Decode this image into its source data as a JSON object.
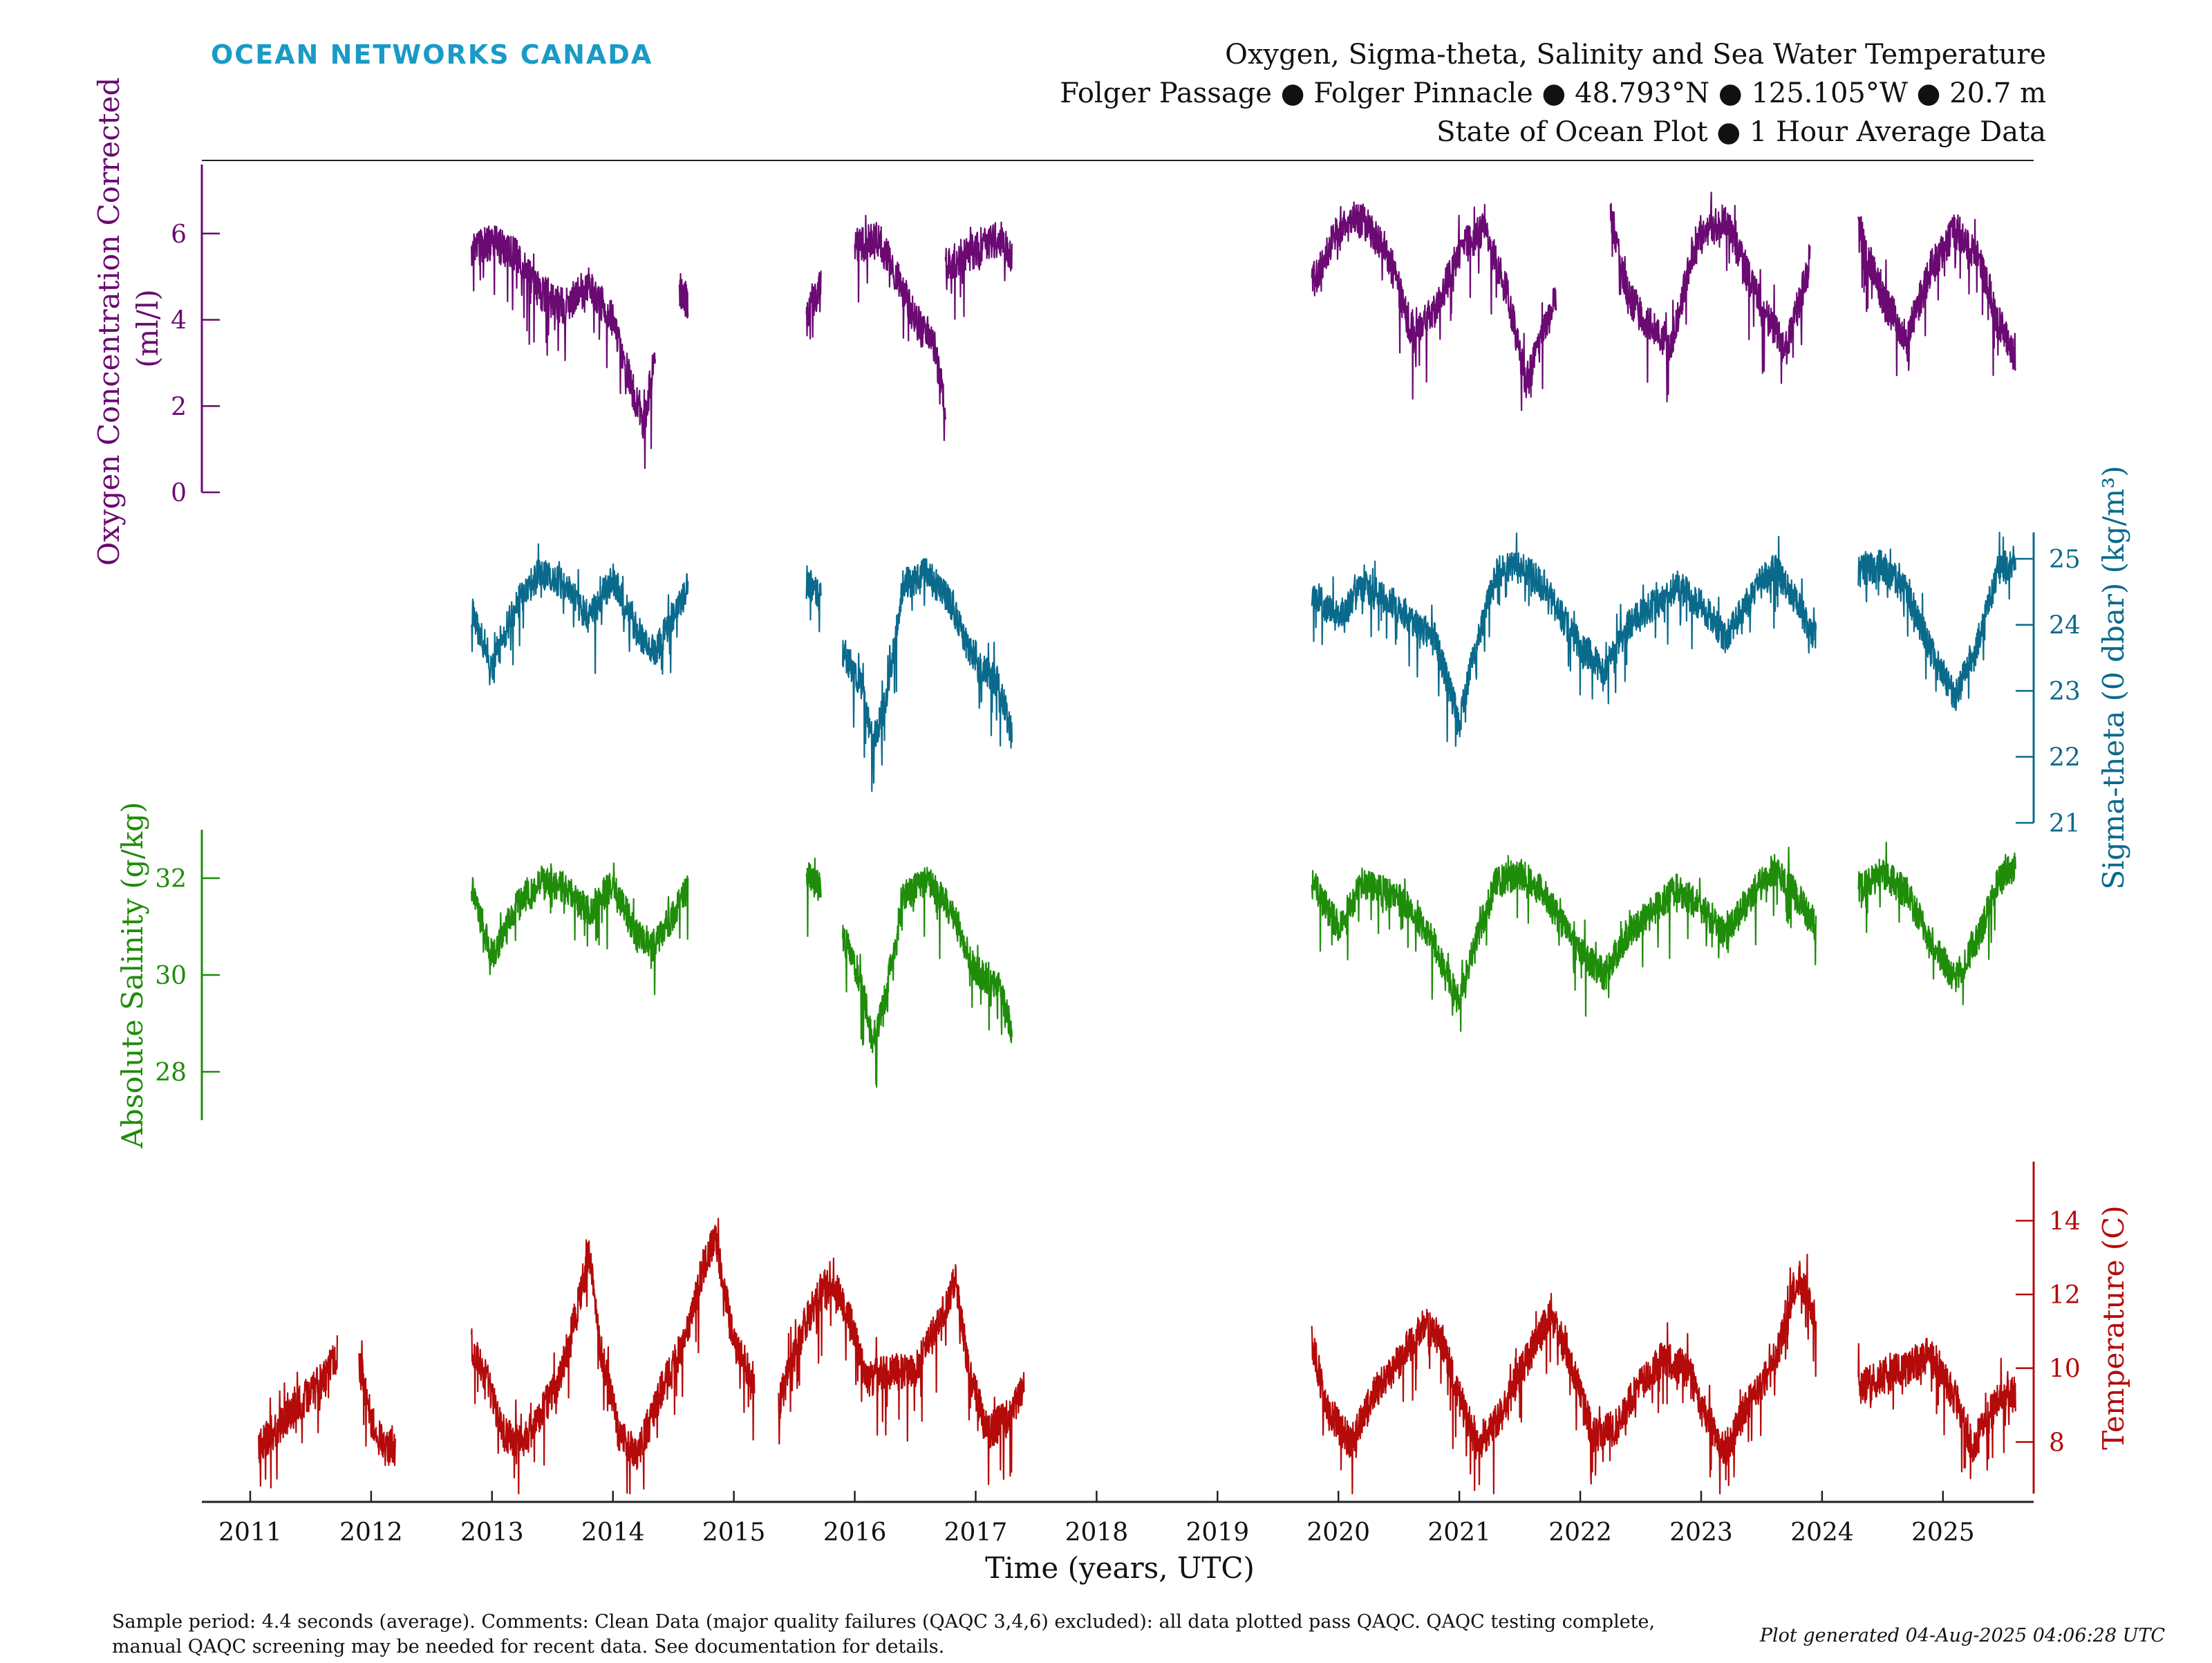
{
  "brand": {
    "name": "OCEAN NETWORKS CANADA",
    "color": "#1a9ac6"
  },
  "header": {
    "line1": "Oxygen, Sigma-theta, Salinity and Sea Water Temperature",
    "line2": "Folger Passage ● Folger Pinnacle ● 48.793°N ● 125.105°W ● 20.7 m",
    "line3": "State of Ocean Plot ● 1 Hour Average Data"
  },
  "footer": {
    "comment_line1": "Sample period: 4.4 seconds (average). Comments: Clean Data (major quality failures (QAQC 3,4,6) excluded): all data plotted pass QAQC. QAQC testing complete,",
    "comment_line2": "manual QAQC screening may be needed for recent data. See documentation for details.",
    "generated": "Plot generated 04-Aug-2025 04:06:28 UTC"
  },
  "chart_data": {
    "type": "line",
    "title": "Oxygen, Sigma-theta, Salinity and Sea Water Temperature",
    "xlabel": "Time (years, UTC)",
    "xlim": [
      2010.6,
      2025.75
    ],
    "x_ticks": [
      "2011",
      "2012",
      "2013",
      "2014",
      "2015",
      "2016",
      "2017",
      "2018",
      "2019",
      "2020",
      "2021",
      "2022",
      "2023",
      "2024",
      "2025"
    ],
    "grid": false,
    "series": [
      {
        "name": "Oxygen Concentration Corrected",
        "axis_label_line1": "Oxygen Concentration Corrected",
        "axis_label_line2": "(ml/l)",
        "axis_side": "left",
        "color": "#6a0a72",
        "ylim": [
          0,
          7.6
        ],
        "y_ticks": [
          "0",
          "2",
          "4",
          "6"
        ],
        "segments": [
          {
            "x": [
              2012.83,
              2013.0,
              2013.2,
              2013.4,
              2013.6,
              2013.8,
              2014.0,
              2014.1,
              2014.25,
              2014.35
            ],
            "y": [
              5.6,
              5.8,
              5.5,
              4.6,
              4.3,
              4.8,
              4.0,
              3.0,
              1.5,
              3.2
            ]
          },
          {
            "x": [
              2014.55,
              2014.62
            ],
            "y": [
              4.7,
              4.4
            ]
          },
          {
            "x": [
              2015.6,
              2015.72
            ],
            "y": [
              4.0,
              4.8
            ]
          },
          {
            "x": [
              2016.0,
              2016.2,
              2016.35,
              2016.5,
              2016.65,
              2016.75
            ],
            "y": [
              5.7,
              5.9,
              5.0,
              4.0,
              3.5,
              2.0
            ]
          },
          {
            "x": [
              2016.75,
              2017.0,
              2017.2,
              2017.3
            ],
            "y": [
              5.3,
              5.6,
              5.9,
              5.5
            ]
          },
          {
            "x": [
              2019.78,
              2020.0,
              2020.2,
              2020.4,
              2020.6,
              2020.8,
              2021.0,
              2021.2,
              2021.4,
              2021.55,
              2021.8
            ],
            "y": [
              4.8,
              6.2,
              6.3,
              5.6,
              3.8,
              4.2,
              5.6,
              6.1,
              4.6,
              2.5,
              4.5
            ]
          },
          {
            "x": [
              2022.25,
              2022.4,
              2022.6,
              2022.75,
              2022.9,
              2023.0,
              2023.2,
              2023.4,
              2023.55,
              2023.7,
              2023.9
            ],
            "y": [
              6.5,
              4.5,
              3.8,
              3.4,
              5.2,
              6.0,
              6.3,
              5.0,
              4.0,
              3.3,
              5.3
            ]
          },
          {
            "x": [
              2024.3,
              2024.5,
              2024.7,
              2024.9,
              2025.1,
              2025.3,
              2025.45,
              2025.6
            ],
            "y": [
              6.2,
              4.5,
              3.6,
              5.2,
              6.1,
              5.4,
              4.0,
              3.1
            ]
          }
        ]
      },
      {
        "name": "Sigma-theta (0 dbar)",
        "axis_label": "Sigma-theta (0 dbar) (kg/m³)",
        "axis_side": "right",
        "color": "#0a6a8c",
        "ylim": [
          21,
          25.4
        ],
        "y_ticks": [
          "21",
          "22",
          "23",
          "24",
          "25"
        ],
        "segments": [
          {
            "x": [
              2012.83,
              2013.0,
              2013.2,
              2013.4,
              2013.6,
              2013.8,
              2014.0,
              2014.2,
              2014.35,
              2014.62
            ],
            "y": [
              24.2,
              23.4,
              24.3,
              24.8,
              24.6,
              24.1,
              24.7,
              23.9,
              23.6,
              24.6
            ]
          },
          {
            "x": [
              2015.6,
              2015.72
            ],
            "y": [
              24.7,
              24.4
            ]
          },
          {
            "x": [
              2015.9,
              2016.05,
              2016.15,
              2016.25,
              2016.4,
              2016.6,
              2016.8,
              2017.0,
              2017.2,
              2017.3
            ],
            "y": [
              23.6,
              23.1,
              22.2,
              22.8,
              24.6,
              24.8,
              24.3,
              23.4,
              23.1,
              22.3
            ]
          },
          {
            "x": [
              2019.78,
              2020.0,
              2020.2,
              2020.4,
              2020.6,
              2020.8,
              2021.0,
              2021.1,
              2021.3,
              2021.5,
              2021.7,
              2021.95,
              2022.2,
              2022.4,
              2022.6,
              2022.8,
              2023.0,
              2023.2,
              2023.4,
              2023.6,
              2023.8,
              2023.95
            ],
            "y": [
              24.5,
              24.1,
              24.6,
              24.4,
              24.1,
              23.8,
              22.5,
              23.4,
              24.8,
              24.9,
              24.6,
              23.8,
              23.3,
              24.0,
              24.3,
              24.6,
              24.3,
              23.8,
              24.4,
              24.9,
              24.3,
              23.8
            ]
          },
          {
            "x": [
              2024.3,
              2024.5,
              2024.7,
              2024.9,
              2025.1,
              2025.3,
              2025.45,
              2025.6
            ],
            "y": [
              24.8,
              24.9,
              24.5,
              23.6,
              22.9,
              23.8,
              24.8,
              25.0
            ]
          }
        ]
      },
      {
        "name": "Absolute Salinity",
        "axis_label": "Absolute Salinity (g/kg)",
        "axis_side": "left",
        "color": "#1f8c0a",
        "ylim": [
          27,
          33
        ],
        "y_ticks": [
          "28",
          "30",
          "32"
        ],
        "segments": [
          {
            "x": [
              2012.83,
              2013.0,
              2013.2,
              2013.4,
              2013.6,
              2013.8,
              2014.0,
              2014.2,
              2014.35,
              2014.62
            ],
            "y": [
              31.8,
              30.4,
              31.4,
              31.9,
              31.8,
              31.3,
              31.9,
              30.8,
              30.6,
              31.8
            ]
          },
          {
            "x": [
              2015.6,
              2015.72
            ],
            "y": [
              32.1,
              31.8
            ]
          },
          {
            "x": [
              2015.9,
              2016.05,
              2016.15,
              2016.25,
              2016.4,
              2016.6,
              2016.8,
              2017.0,
              2017.2,
              2017.3
            ],
            "y": [
              30.8,
              29.9,
              28.6,
              29.5,
              31.6,
              32.0,
              31.3,
              30.1,
              29.7,
              28.8
            ]
          },
          {
            "x": [
              2019.78,
              2020.0,
              2020.2,
              2020.4,
              2020.6,
              2020.8,
              2021.0,
              2021.1,
              2021.3,
              2021.5,
              2021.7,
              2021.95,
              2022.2,
              2022.4,
              2022.6,
              2022.8,
              2023.0,
              2023.2,
              2023.4,
              2023.6,
              2023.8,
              2023.95
            ],
            "y": [
              31.9,
              31.0,
              31.9,
              31.7,
              31.4,
              30.6,
              29.4,
              30.4,
              31.9,
              32.1,
              31.7,
              30.6,
              30.0,
              30.9,
              31.3,
              31.8,
              31.4,
              30.8,
              31.6,
              32.2,
              31.6,
              31.0
            ]
          },
          {
            "x": [
              2024.3,
              2024.5,
              2024.7,
              2024.9,
              2025.1,
              2025.3,
              2025.45,
              2025.6
            ],
            "y": [
              31.8,
              32.1,
              31.7,
              30.7,
              29.9,
              30.8,
              31.9,
              32.3
            ]
          }
        ]
      },
      {
        "name": "Temperature",
        "axis_label": "Temperature (C)",
        "axis_side": "right",
        "color": "#b40a0a",
        "ylim": [
          6.6,
          15.6
        ],
        "y_ticks": [
          "8",
          "10",
          "12",
          "14"
        ],
        "segments": [
          {
            "x": [
              2011.07,
              2011.2,
              2011.4,
              2011.6,
              2011.72
            ],
            "y": [
              7.9,
              8.3,
              9.0,
              9.7,
              10.4
            ]
          },
          {
            "x": [
              2011.9,
              2012.0,
              2012.1,
              2012.2
            ],
            "y": [
              10.1,
              8.6,
              7.9,
              7.8
            ]
          },
          {
            "x": [
              2012.83,
              2012.95,
              2013.1,
              2013.25,
              2013.4,
              2013.55,
              2013.7,
              2013.8,
              2013.9,
              2014.05,
              2014.2,
              2014.4,
              2014.6,
              2014.75,
              2014.85,
              2015.0,
              2015.17
            ],
            "y": [
              10.6,
              9.8,
              8.2,
              7.9,
              8.8,
              9.6,
              11.5,
              13.2,
              10.5,
              8.2,
              7.6,
              9.4,
              10.8,
              12.8,
              13.6,
              10.6,
              9.7
            ]
          },
          {
            "x": [
              2015.37,
              2015.6,
              2015.8,
              2015.95,
              2016.1,
              2016.3,
              2016.5,
              2016.7,
              2016.83,
              2016.95,
              2017.1,
              2017.25,
              2017.4
            ],
            "y": [
              9.0,
              11.3,
              12.5,
              11.4,
              9.7,
              9.9,
              9.9,
              11.3,
              12.4,
              9.8,
              8.3,
              8.6,
              9.4
            ]
          },
          {
            "x": [
              2019.78,
              2019.9,
              2020.1,
              2020.3,
              2020.5,
              2020.7,
              2020.85,
              2021.0,
              2021.15,
              2021.35,
              2021.55,
              2021.75,
              2021.9,
              2022.1,
              2022.3,
              2022.5,
              2022.7,
              2022.9,
              2023.05,
              2023.2,
              2023.4,
              2023.6,
              2023.8,
              2023.95
            ],
            "y": [
              10.8,
              8.9,
              8.0,
              9.3,
              10.2,
              11.2,
              10.8,
              9.2,
              7.9,
              8.8,
              10.2,
              11.4,
              10.4,
              8.2,
              8.4,
              9.6,
              10.3,
              9.9,
              8.6,
              7.8,
              9.1,
              10.0,
              12.6,
              11.3
            ]
          },
          {
            "x": [
              2024.3,
              2024.5,
              2024.7,
              2024.9,
              2025.1,
              2025.25,
              2025.45,
              2025.6
            ],
            "y": [
              9.4,
              9.8,
              10.0,
              10.4,
              9.2,
              7.9,
              9.1,
              9.3
            ]
          }
        ]
      }
    ]
  }
}
